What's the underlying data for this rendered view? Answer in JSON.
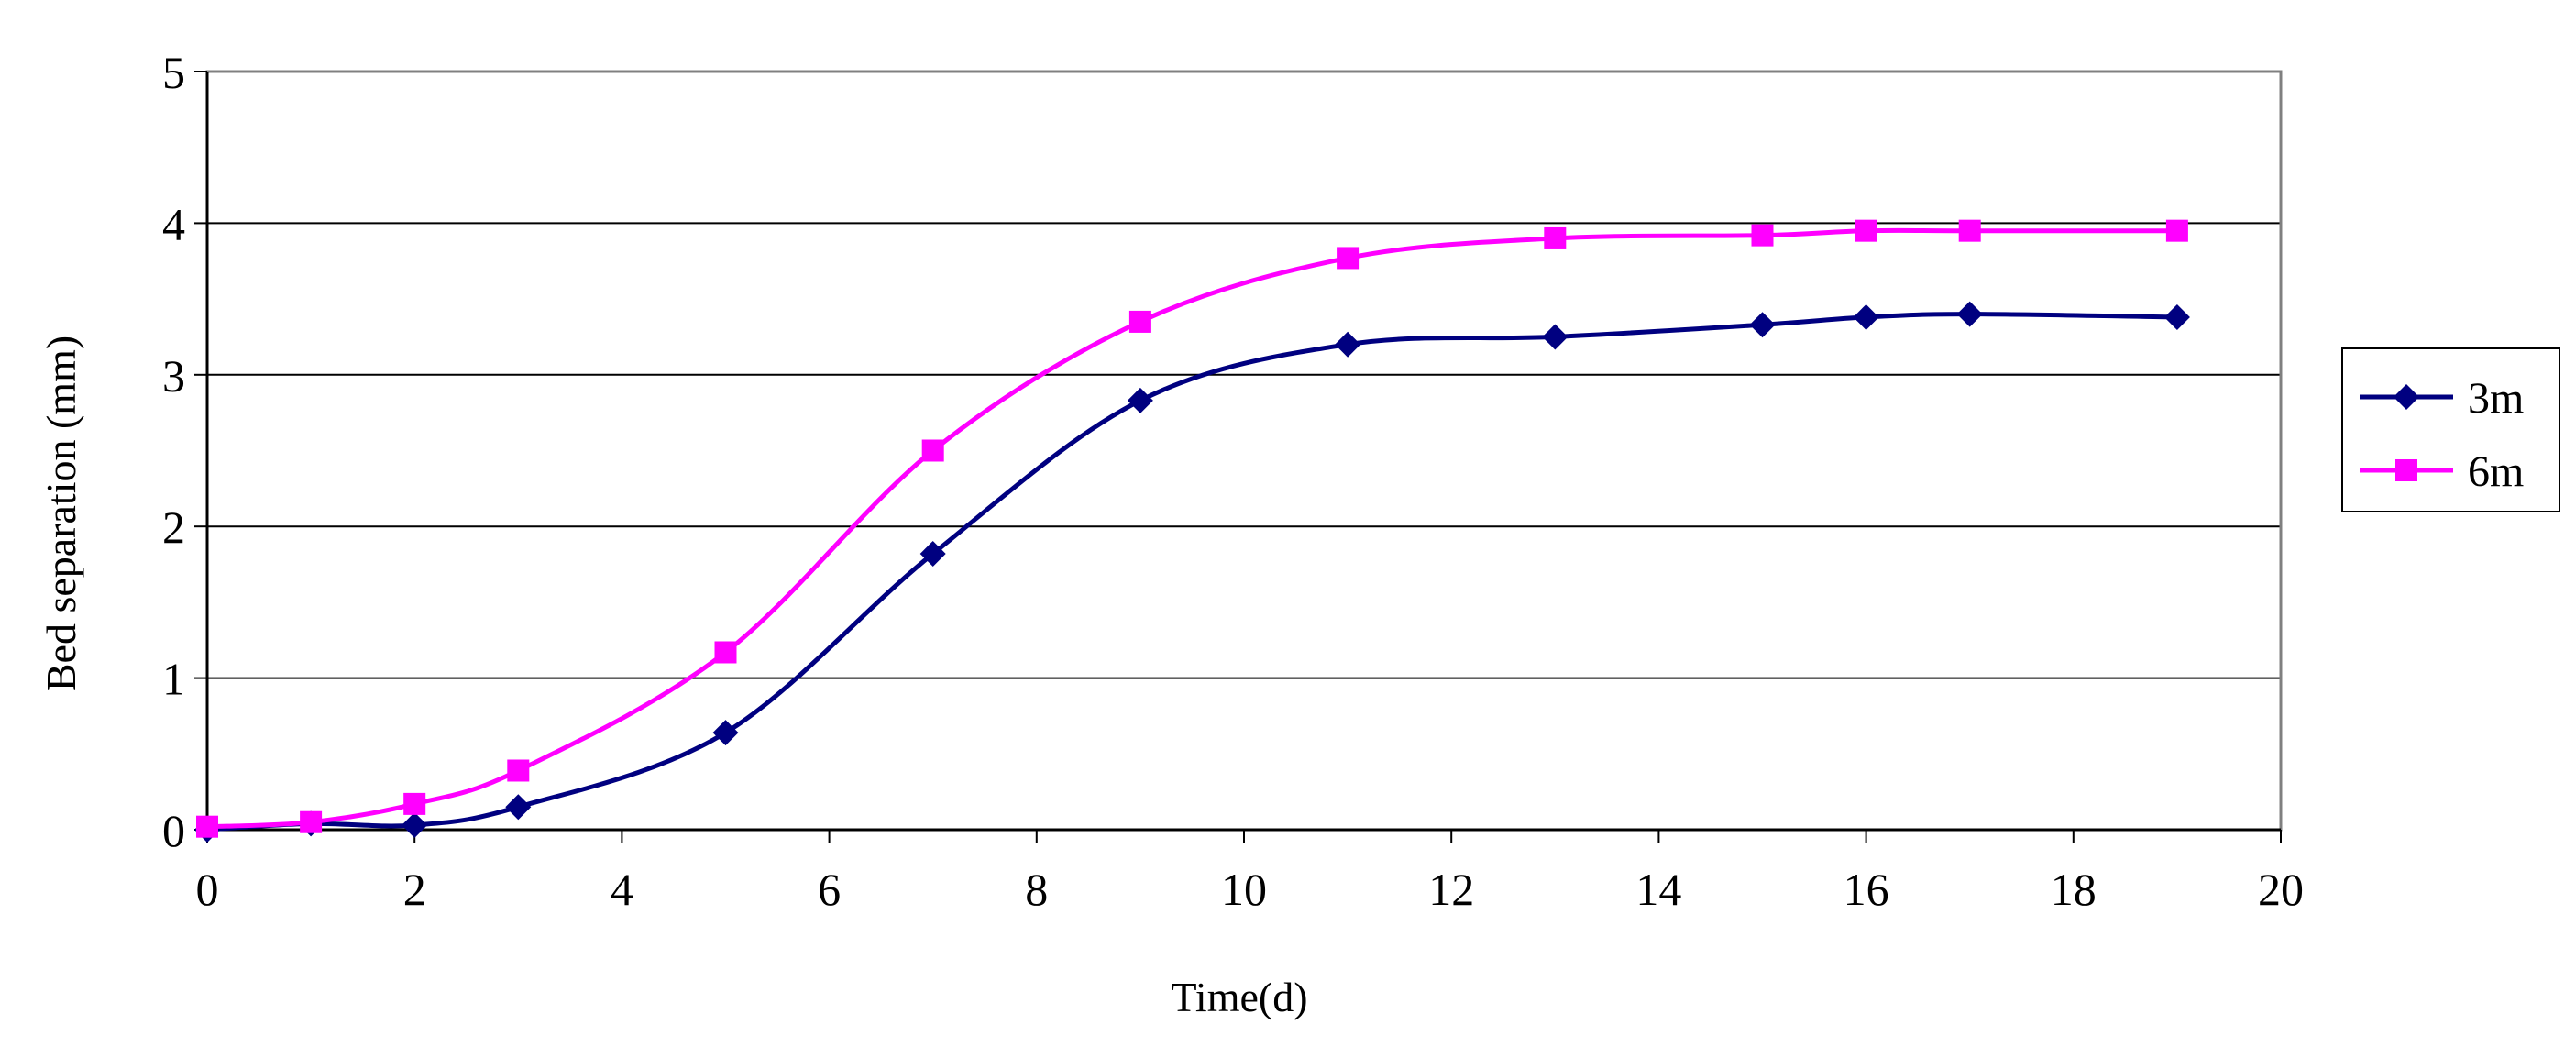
{
  "chart_data": {
    "type": "line",
    "title": "",
    "xlabel": "Time(d)",
    "ylabel": "Bed separation (mm)",
    "xlim": [
      0,
      20
    ],
    "ylim": [
      0,
      5
    ],
    "x_ticks": [
      "0",
      "2",
      "4",
      "6",
      "8",
      "10",
      "12",
      "14",
      "16",
      "18",
      "20"
    ],
    "y_ticks": [
      "0",
      "1",
      "2",
      "3",
      "4",
      "5"
    ],
    "grid": "horizontal",
    "legend_position": "right",
    "series": [
      {
        "name": "3m",
        "color": "#000080",
        "marker": "diamond",
        "x": [
          0,
          1,
          2,
          3,
          5,
          7,
          9,
          11,
          13,
          15,
          16,
          17,
          19
        ],
        "y": [
          0,
          0.04,
          0.03,
          0.15,
          0.64,
          1.82,
          2.83,
          3.2,
          3.25,
          3.33,
          3.38,
          3.4,
          3.38
        ]
      },
      {
        "name": "6m",
        "color": "#FF00FF",
        "marker": "square",
        "x": [
          0,
          1,
          2,
          3,
          5,
          7,
          9,
          11,
          13,
          15,
          16,
          17,
          19
        ],
        "y": [
          0.02,
          0.05,
          0.17,
          0.39,
          1.17,
          2.5,
          3.35,
          3.77,
          3.9,
          3.92,
          3.95,
          3.95,
          3.95
        ]
      }
    ]
  }
}
